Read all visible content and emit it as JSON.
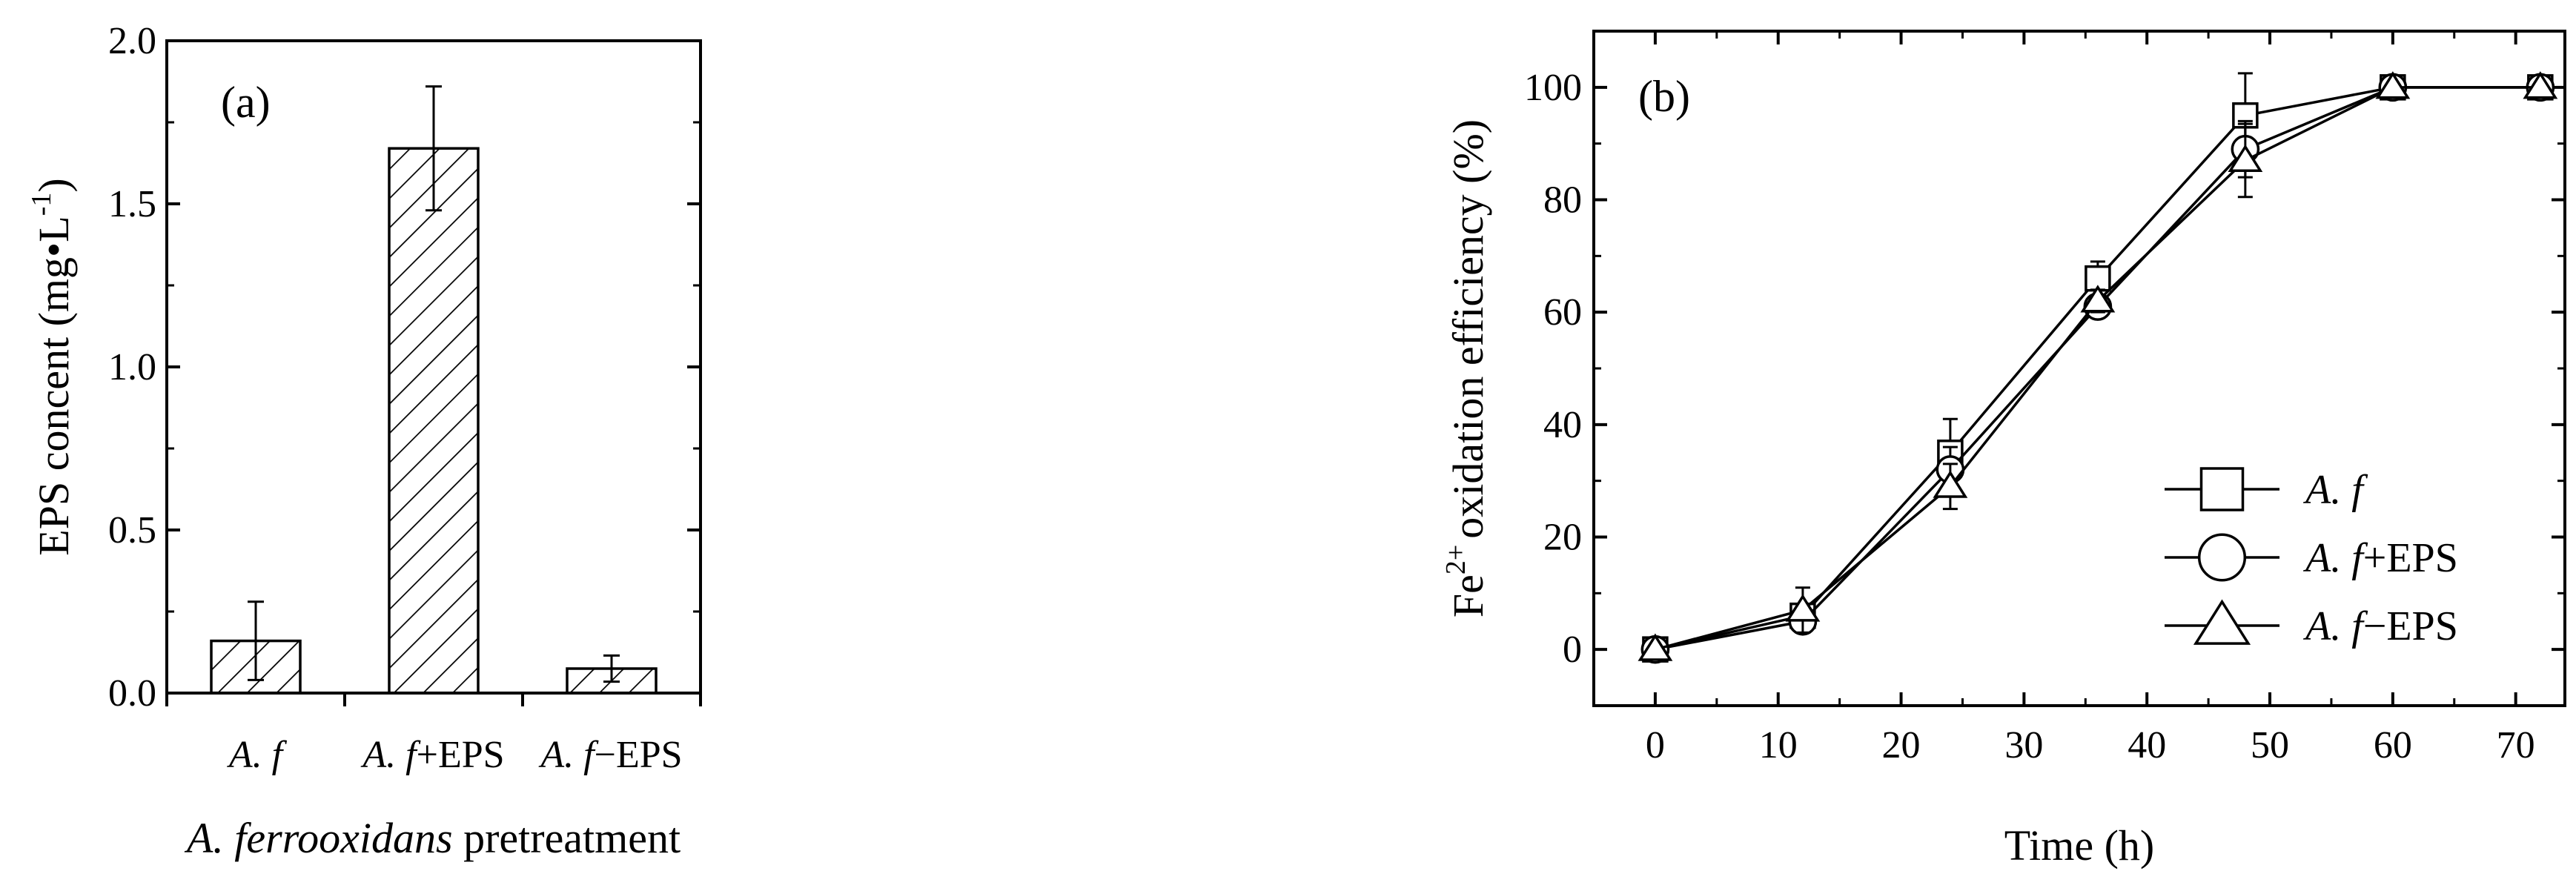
{
  "chart_data": [
    {
      "type": "bar",
      "panel_label": "(a)",
      "title": "",
      "ylabel": "EPS concent (mg•L",
      "ylabel_sup": "-1",
      "ylabel_close": ")",
      "xlabel_italic": "A. ferrooxidans",
      "xlabel_rest": " pretreatment",
      "categories": [
        {
          "italic": "A. f",
          "rest": ""
        },
        {
          "italic": "A. f",
          "rest": "+EPS"
        },
        {
          "italic": "A. f",
          "rest": "−EPS"
        }
      ],
      "values": [
        0.16,
        1.67,
        0.075
      ],
      "errors": [
        0.12,
        0.19,
        0.04
      ],
      "ylim": [
        0,
        2.0
      ],
      "yticks": [
        "0.0",
        "0.5",
        "1.0",
        "1.5",
        "2.0"
      ],
      "fill": "diagonal-hatch",
      "colors": {
        "edge": "#000000",
        "hatch": "#000000"
      }
    },
    {
      "type": "line",
      "panel_label": "(b)",
      "title": "",
      "ylabel_base": "Fe",
      "ylabel_sup": "2+",
      "ylabel_rest": "oxidation efficiency (%)",
      "xlabel": "Time (h)",
      "xlim": [
        -5,
        74
      ],
      "ylim": [
        -10,
        110
      ],
      "xticks": [
        "0",
        "10",
        "20",
        "30",
        "40",
        "50",
        "60",
        "70"
      ],
      "yticks": [
        "0",
        "20",
        "40",
        "60",
        "80",
        "100"
      ],
      "x": [
        0,
        12,
        24,
        36,
        48,
        60,
        72
      ],
      "series": [
        {
          "legend_italic": "A. f",
          "legend_rest": "",
          "marker": "square",
          "values": [
            0,
            6,
            35,
            66,
            95,
            100,
            100
          ],
          "errors": [
            0,
            2,
            6,
            3,
            7.5,
            0,
            0
          ]
        },
        {
          "legend_italic": "A. f",
          "legend_rest": "+EPS",
          "marker": "circle",
          "values": [
            0,
            5,
            32,
            61,
            89,
            100,
            100
          ],
          "errors": [
            0,
            2,
            4,
            2,
            5,
            0,
            0
          ]
        },
        {
          "legend_italic": "A. f",
          "legend_rest": "−EPS",
          "marker": "triangle",
          "values": [
            0,
            7,
            29,
            62,
            87,
            100,
            100
          ],
          "errors": [
            0,
            4,
            4,
            2,
            6.5,
            0,
            0
          ]
        }
      ],
      "legend_position": "bottom-right",
      "grid": false
    }
  ]
}
